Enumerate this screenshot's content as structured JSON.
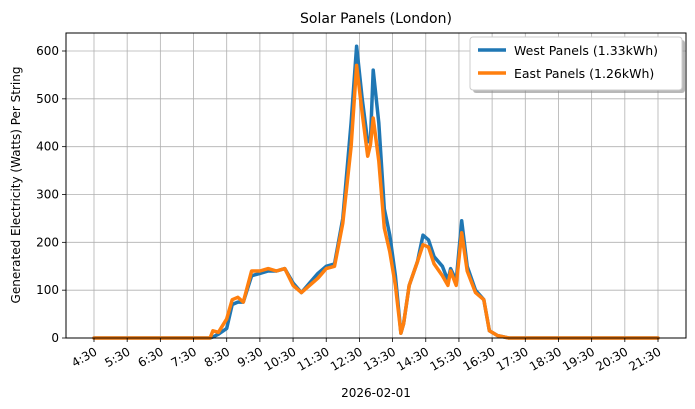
{
  "chart_data": {
    "type": "line",
    "title": "Solar Panels (London)",
    "xlabel": "2026-02-01",
    "ylabel": "Generated Electricity (Watts) Per String",
    "ylim": [
      0,
      640
    ],
    "xlim": [
      "4:00",
      "22:20"
    ],
    "grid": true,
    "legend_position": "upper right",
    "y_ticks": [
      0,
      100,
      200,
      300,
      400,
      500,
      600
    ],
    "x_ticks": [
      "4:30",
      "5:30",
      "6:30",
      "7:30",
      "8:30",
      "9:30",
      "10:30",
      "11:30",
      "12:30",
      "13:30",
      "14:30",
      "15:30",
      "16:30",
      "17:30",
      "18:30",
      "19:30",
      "20:30",
      "21:30"
    ],
    "x": [
      "4:30",
      "7:30",
      "8:00",
      "8:05",
      "8:15",
      "8:30",
      "8:40",
      "8:50",
      "9:00",
      "9:15",
      "9:30",
      "9:45",
      "10:00",
      "10:15",
      "10:30",
      "10:45",
      "11:00",
      "11:15",
      "11:30",
      "11:45",
      "12:00",
      "12:15",
      "12:25",
      "12:35",
      "12:45",
      "12:50",
      "12:55",
      "13:05",
      "13:15",
      "13:25",
      "13:35",
      "13:45",
      "13:50",
      "14:00",
      "14:15",
      "14:25",
      "14:35",
      "14:45",
      "15:00",
      "15:10",
      "15:15",
      "15:25",
      "15:35",
      "15:45",
      "16:00",
      "16:15",
      "16:25",
      "16:40",
      "17:00",
      "21:30"
    ],
    "series": [
      {
        "name": "West Panels (1.33kWh)",
        "color": "#1f77b4",
        "values": [
          0,
          0,
          0,
          2,
          8,
          20,
          70,
          75,
          75,
          130,
          135,
          140,
          140,
          145,
          115,
          95,
          115,
          135,
          150,
          155,
          250,
          450,
          610,
          500,
          410,
          415,
          560,
          450,
          270,
          215,
          130,
          10,
          30,
          110,
          160,
          215,
          205,
          170,
          150,
          120,
          145,
          120,
          245,
          150,
          100,
          80,
          15,
          5,
          0,
          0
        ]
      },
      {
        "name": "East Panels (1.26kWh)",
        "color": "#ff7f0e",
        "values": [
          0,
          0,
          0,
          15,
          12,
          40,
          80,
          85,
          75,
          140,
          140,
          145,
          140,
          145,
          110,
          95,
          110,
          125,
          145,
          150,
          240,
          400,
          570,
          470,
          380,
          405,
          460,
          370,
          230,
          180,
          110,
          10,
          30,
          110,
          160,
          195,
          190,
          155,
          130,
          110,
          140,
          110,
          220,
          140,
          95,
          80,
          15,
          5,
          0,
          0
        ]
      }
    ]
  },
  "legend": {
    "items": [
      {
        "label": "West Panels (1.33kWh)",
        "color": "#1f77b4"
      },
      {
        "label": "East Panels (1.26kWh)",
        "color": "#ff7f0e"
      }
    ]
  }
}
